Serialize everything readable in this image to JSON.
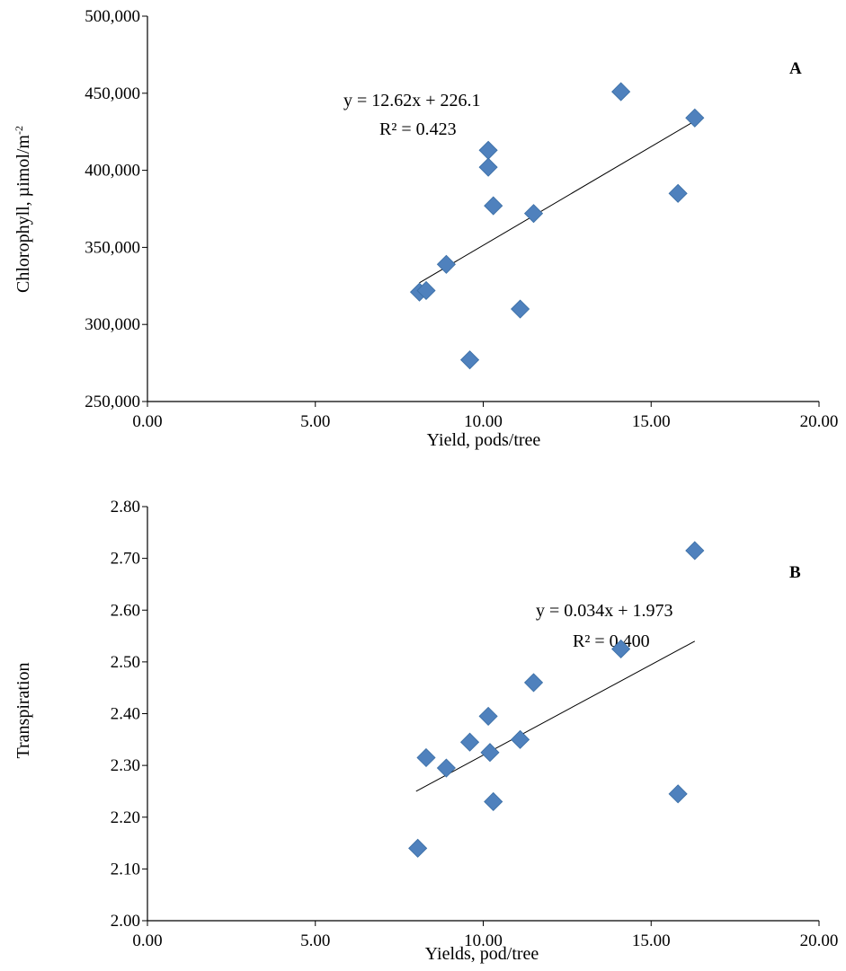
{
  "chart_data": [
    {
      "type": "scatter",
      "panel_label": "A",
      "xlabel": "Yield, pods/tree",
      "ylabel_main": "Chlorophyll, µimol/m",
      "ylabel_sup": "-2",
      "xlim": [
        0,
        20
      ],
      "ylim": [
        250000,
        500000
      ],
      "x_ticks": [
        "0.00",
        "5.00",
        "10.00",
        "15.00",
        "20.00"
      ],
      "y_ticks": [
        "250,000",
        "300,000",
        "350,000",
        "400,000",
        "450,000",
        "500,000"
      ],
      "equation": "y = 12.62x + 226.1",
      "r_squared": "R² = 0.423",
      "marker_color": "#4f81bd",
      "trendline": {
        "x": [
          8.1,
          16.3
        ],
        "y": [
          327000,
          432000
        ]
      },
      "points": [
        {
          "x": 8.1,
          "y": 321000
        },
        {
          "x": 8.3,
          "y": 322000
        },
        {
          "x": 8.9,
          "y": 339000
        },
        {
          "x": 9.6,
          "y": 277000
        },
        {
          "x": 10.15,
          "y": 413000
        },
        {
          "x": 10.15,
          "y": 402000
        },
        {
          "x": 10.3,
          "y": 377000
        },
        {
          "x": 11.1,
          "y": 310000
        },
        {
          "x": 11.5,
          "y": 372000
        },
        {
          "x": 14.1,
          "y": 451000
        },
        {
          "x": 15.8,
          "y": 385000
        },
        {
          "x": 16.3,
          "y": 434000
        }
      ]
    },
    {
      "type": "scatter",
      "panel_label": "B",
      "xlabel": "Yields, pod/tree",
      "ylabel_main": "Transpiration",
      "ylabel_sup": "",
      "xlim": [
        0,
        20
      ],
      "ylim": [
        2.0,
        2.8
      ],
      "x_ticks": [
        "0.00",
        "5.00",
        "10.00",
        "15.00",
        "20.00"
      ],
      "y_ticks": [
        "2.00",
        "2.10",
        "2.20",
        "2.30",
        "2.40",
        "2.50",
        "2.60",
        "2.70",
        "2.80"
      ],
      "equation": "y = 0.034x + 1.973",
      "r_squared": "R² = 0.400",
      "marker_color": "#4f81bd",
      "trendline": {
        "x": [
          8.0,
          16.3
        ],
        "y": [
          2.25,
          2.54
        ]
      },
      "points": [
        {
          "x": 8.05,
          "y": 2.14
        },
        {
          "x": 8.3,
          "y": 2.315
        },
        {
          "x": 8.9,
          "y": 2.295
        },
        {
          "x": 9.6,
          "y": 2.345
        },
        {
          "x": 10.15,
          "y": 2.395
        },
        {
          "x": 10.2,
          "y": 2.325
        },
        {
          "x": 10.3,
          "y": 2.23
        },
        {
          "x": 11.1,
          "y": 2.35
        },
        {
          "x": 11.5,
          "y": 2.46
        },
        {
          "x": 14.1,
          "y": 2.525
        },
        {
          "x": 15.8,
          "y": 2.245
        },
        {
          "x": 16.3,
          "y": 2.715
        }
      ]
    }
  ]
}
